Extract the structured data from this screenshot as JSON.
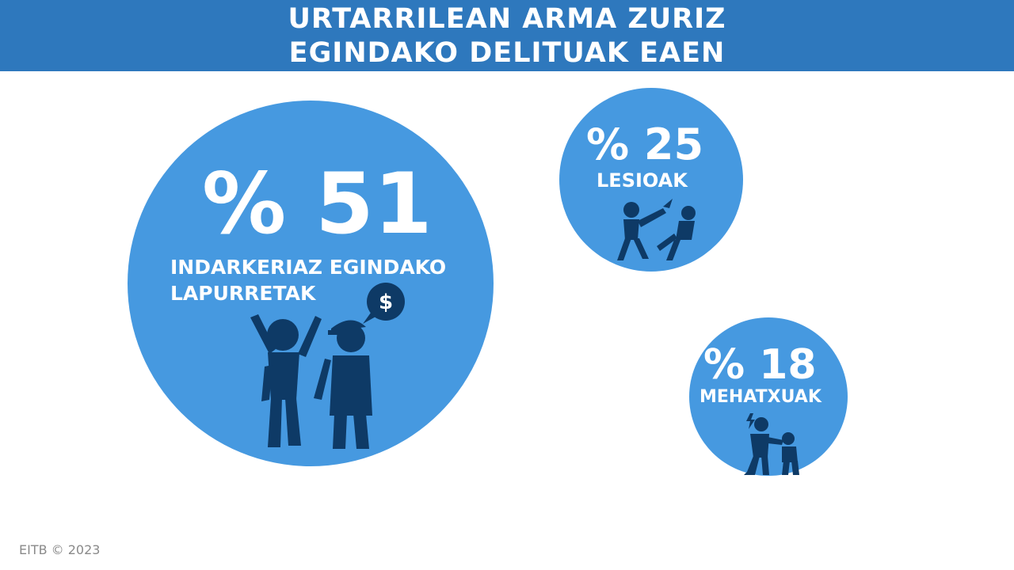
{
  "header": {
    "title_line1": "URTARRILEAN ARMA ZURIZ",
    "title_line2": "EGINDAKO DELITUAK EAEN"
  },
  "colors": {
    "header_bg": "#2e78bd",
    "bubble": "#4699e0",
    "figure": "#0e3a66"
  },
  "chart_data": {
    "type": "bubble",
    "title": "URTARRILEAN ARMA ZURIZ EGINDAKO DELITUAK EAEN",
    "unit": "%",
    "items": [
      {
        "value": 51,
        "value_label": "% 51",
        "label_line1": "INDARKERIAZ EGINDAKO",
        "label_line2": "LAPURRETAK",
        "icon": "robbery-icon"
      },
      {
        "value": 25,
        "value_label": "% 25",
        "label_line1": "LESIOAK",
        "icon": "assault-icon"
      },
      {
        "value": 18,
        "value_label": "% 18",
        "label_line1": "MEHATXUAK",
        "icon": "threat-icon"
      }
    ]
  },
  "dollar_sign": "$",
  "footer": {
    "credit": "EITB © 2023"
  }
}
